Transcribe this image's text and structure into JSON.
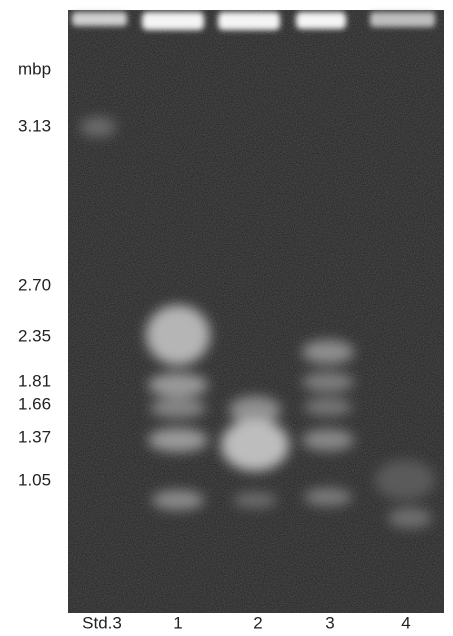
{
  "axis_label": "mbp",
  "size_labels": [
    "3.13",
    "2.70",
    "2.35",
    "1.81",
    "1.66",
    "1.37",
    "1.05"
  ],
  "lane_labels": [
    "Std.3",
    "1",
    "2",
    "3",
    "4"
  ]
}
